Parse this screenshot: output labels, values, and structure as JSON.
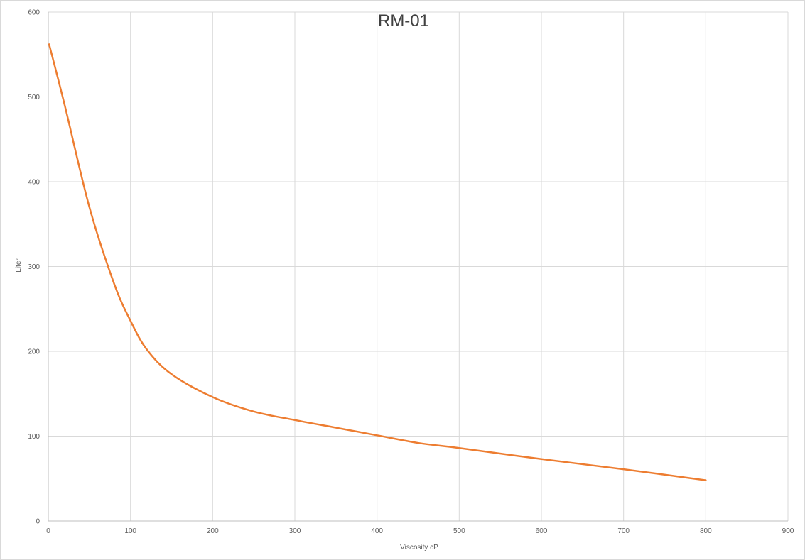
{
  "chart_data": {
    "type": "line",
    "title": "RM-01",
    "xlabel": "Viscosity cP",
    "ylabel": "Liter",
    "xlim": [
      0,
      900
    ],
    "ylim": [
      0,
      600
    ],
    "xticks": [
      0,
      100,
      200,
      300,
      400,
      500,
      600,
      700,
      800,
      900
    ],
    "yticks": [
      0,
      100,
      200,
      300,
      400,
      500,
      600
    ],
    "grid": true,
    "legend": "none",
    "series": [
      {
        "color": "#ed7d31",
        "smooth": true,
        "points": [
          {
            "x": 1,
            "y": 562
          },
          {
            "x": 20,
            "y": 490
          },
          {
            "x": 50,
            "y": 370
          },
          {
            "x": 80,
            "y": 280
          },
          {
            "x": 100,
            "y": 236
          },
          {
            "x": 120,
            "y": 202
          },
          {
            "x": 150,
            "y": 173
          },
          {
            "x": 200,
            "y": 146
          },
          {
            "x": 250,
            "y": 129
          },
          {
            "x": 300,
            "y": 119
          },
          {
            "x": 350,
            "y": 110
          },
          {
            "x": 400,
            "y": 101
          },
          {
            "x": 450,
            "y": 92
          },
          {
            "x": 500,
            "y": 86
          },
          {
            "x": 600,
            "y": 73
          },
          {
            "x": 700,
            "y": 61
          },
          {
            "x": 800,
            "y": 48
          }
        ]
      }
    ]
  }
}
